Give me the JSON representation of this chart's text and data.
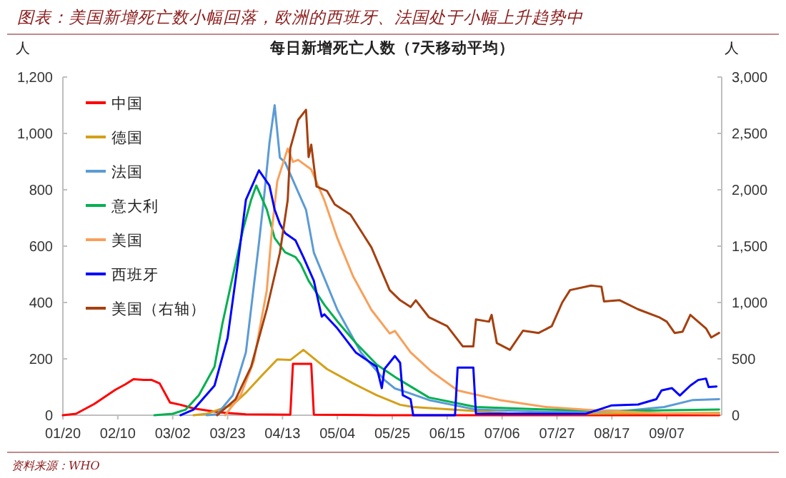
{
  "chart_data": {
    "type": "line",
    "title": "图表：美国新增死亡数小幅回落，欧洲的西班牙、法国处于小幅上升趋势中",
    "subtitle": "每日新增死亡人数（7天移动平均）",
    "ylabel": "人",
    "y2label": "人",
    "annotations": [
      "资料来源：WHO"
    ],
    "legend": "top left",
    "xlim": [
      "--01-20",
      "--09-28"
    ],
    "xticks": [
      {
        "value": "--01-20",
        "label": "01/20"
      },
      {
        "value": "--02-10",
        "label": "02/10"
      },
      {
        "value": "--03-02",
        "label": "03/02"
      },
      {
        "value": "--03-23",
        "label": "03/23"
      },
      {
        "value": "--04-13",
        "label": "04/13"
      },
      {
        "value": "--05-04",
        "label": "05/04"
      },
      {
        "value": "--05-25",
        "label": "05/25"
      },
      {
        "value": "--06-15",
        "label": "06/15"
      },
      {
        "value": "--07-06",
        "label": "07/06"
      },
      {
        "value": "--07-27",
        "label": "07/27"
      },
      {
        "value": "--08-17",
        "label": "08/17"
      },
      {
        "value": "--09-07",
        "label": "09/07"
      }
    ],
    "ylim": [
      0,
      1200
    ],
    "yticks": [
      0,
      200,
      400,
      600,
      800,
      {
        "value": 1000,
        "label": "1,000"
      },
      {
        "value": 1200,
        "label": "1,200"
      }
    ],
    "y2lim": [
      0,
      3000
    ],
    "y2ticks": [
      0,
      500,
      {
        "value": 1000,
        "label": "1,000"
      },
      {
        "value": 1500,
        "label": "1,500"
      },
      {
        "value": 2000,
        "label": "2,000"
      },
      {
        "value": 2500,
        "label": "2,500"
      },
      {
        "value": 3000,
        "label": "3,000"
      }
    ],
    "series": [
      {
        "name": "中国",
        "color": "#ff0000",
        "x": [
          "--01-20",
          "--01-25",
          "--02-01",
          "--02-09",
          "--02-13",
          "--02-16",
          "--02-20",
          "--02-23",
          "--02-26",
          "--03-01",
          "--03-05",
          "--03-10",
          "--03-20",
          "--03-30",
          "--04-16",
          "--04-17",
          "--04-24",
          "--04-25",
          "--05-19",
          "--09-27"
        ],
        "values": [
          0,
          5,
          40,
          90,
          110,
          128,
          125,
          125,
          113,
          45,
          37,
          24,
          10,
          3,
          2,
          182,
          182,
          2,
          0,
          0
        ]
      },
      {
        "name": "德国",
        "color": "#d4a017",
        "x": [
          "--03-10",
          "--03-15",
          "--03-25",
          "--03-30",
          "--04-05",
          "--04-11",
          "--04-16",
          "--04-21",
          "--04-30",
          "--05-10",
          "--05-19",
          "--05-28",
          "--06-02",
          "--06-22",
          "--07-08",
          "--08-07",
          "--09-27"
        ],
        "values": [
          0,
          5,
          37,
          80,
          140,
          198,
          196,
          232,
          164,
          113,
          71,
          37,
          29,
          17,
          7,
          5,
          8
        ]
      },
      {
        "name": "法国",
        "color": "#5b9bd5",
        "x": [
          "--03-15",
          "--03-19",
          "--03-25",
          "--03-30",
          "--04-04",
          "--04-06",
          "--04-08",
          "--04-10",
          "--04-12",
          "--04-14",
          "--04-18",
          "--04-22",
          "--04-25",
          "--05-04",
          "--05-13",
          "--05-22",
          "--05-26",
          "--05-31",
          "--06-08",
          "--06-26",
          "--07-23",
          "--08-20",
          "--09-06",
          "--09-17",
          "--09-27"
        ],
        "values": [
          0,
          3,
          71,
          223,
          611,
          779,
          965,
          1100,
          914,
          897,
          813,
          729,
          577,
          374,
          223,
          125,
          95,
          80,
          54,
          20,
          12,
          14,
          29,
          54,
          57
        ]
      },
      {
        "name": "意大利",
        "color": "#00b050",
        "x": [
          "--02-24",
          "--03-02",
          "--03-07",
          "--03-12",
          "--03-18",
          "--03-21",
          "--03-25",
          "--03-29",
          "--04-01",
          "--04-03",
          "--04-07",
          "--04-10",
          "--04-14",
          "--04-18",
          "--04-20",
          "--04-23",
          "--04-29",
          "--05-04",
          "--05-11",
          "--05-19",
          "--05-27",
          "--06-08",
          "--06-26",
          "--07-23",
          "--08-20",
          "--09-27"
        ],
        "values": [
          0,
          5,
          20,
          71,
          172,
          324,
          494,
          662,
          764,
          815,
          730,
          629,
          578,
          561,
          536,
          477,
          392,
          333,
          257,
          180,
          130,
          63,
          29,
          20,
          15,
          20
        ]
      },
      {
        "name": "美国",
        "color": "#f8a05a",
        "x": [
          "--03-22",
          "--03-28",
          "--04-02",
          "--04-07",
          "--04-09",
          "--04-11",
          "--04-15",
          "--04-17",
          "--04-19",
          "--04-24",
          "--04-29",
          "--05-04",
          "--05-10",
          "--05-17",
          "--05-24",
          "--05-26",
          "--06-01",
          "--06-09",
          "--06-19",
          "--07-05",
          "--07-23",
          "--08-11",
          "--09-05",
          "--09-27"
        ],
        "values": [
          0,
          71,
          191,
          443,
          661,
          830,
          946,
          899,
          906,
          872,
          763,
          628,
          493,
          374,
          290,
          299,
          223,
          155,
          88,
          54,
          29,
          17,
          7,
          5
        ]
      },
      {
        "name": "西班牙",
        "color": "#0000ff",
        "x": [
          "--03-05",
          "--03-10",
          "--03-18",
          "--03-23",
          "--03-27",
          "--03-30",
          "--04-04",
          "--04-08",
          "--04-10",
          "--04-12",
          "--04-14",
          "--04-18",
          "--04-21",
          "--04-25",
          "--04-28",
          "--04-29",
          "--05-04",
          "--05-11",
          "--05-19",
          "--05-21",
          "--05-22",
          "--05-26",
          "--05-28",
          "--05-29",
          "--06-01",
          "--06-02",
          "--06-18",
          "--06-19",
          "--06-25",
          "--06-26",
          "--08-07",
          "--08-12",
          "--08-17",
          "--08-27",
          "--09-03",
          "--09-05",
          "--09-09",
          "--09-12",
          "--09-16",
          "--09-19",
          "--09-22",
          "--09-23",
          "--09-26"
        ],
        "values": [
          0,
          20,
          105,
          274,
          544,
          764,
          869,
          815,
          730,
          679,
          646,
          620,
          561,
          477,
          350,
          358,
          308,
          223,
          172,
          96,
          164,
          210,
          186,
          71,
          57,
          0,
          0,
          169,
          169,
          5,
          5,
          20,
          35,
          38,
          57,
          88,
          96,
          70,
          105,
          125,
          130,
          100,
          102
        ]
      },
      {
        "name": "美国（右轴）",
        "color": "#a5400f",
        "axis": "y2",
        "x": [
          "--03-19",
          "--03-26",
          "--04-01",
          "--04-07",
          "--04-12",
          "--04-15",
          "--04-16",
          "--04-19",
          "--04-22",
          "--04-23",
          "--04-24",
          "--04-26",
          "--04-30",
          "--05-03",
          "--05-09",
          "--05-17",
          "--05-24",
          "--05-28",
          "--06-01",
          "--06-03",
          "--06-08",
          "--06-15",
          "--06-21",
          "--06-25",
          "--06-26",
          "--07-01",
          "--07-02",
          "--07-04",
          "--07-09",
          "--07-14",
          "--07-20",
          "--07-25",
          "--07-29",
          "--08-01",
          "--08-09",
          "--08-13",
          "--08-14",
          "--08-20",
          "--08-27",
          "--09-04",
          "--09-07",
          "--09-10",
          "--09-13",
          "--09-16",
          "--09-22",
          "--09-24",
          "--09-27"
        ],
        "values": [
          0,
          140,
          430,
          940,
          1440,
          1910,
          2370,
          2620,
          2710,
          2290,
          2400,
          2030,
          1990,
          1870,
          1780,
          1490,
          1110,
          1020,
          960,
          1020,
          870,
          790,
          610,
          610,
          850,
          830,
          890,
          640,
          580,
          750,
          730,
          790,
          1000,
          1110,
          1150,
          1140,
          1010,
          1020,
          940,
          870,
          830,
          730,
          740,
          890,
          770,
          690,
          730
        ]
      }
    ]
  }
}
